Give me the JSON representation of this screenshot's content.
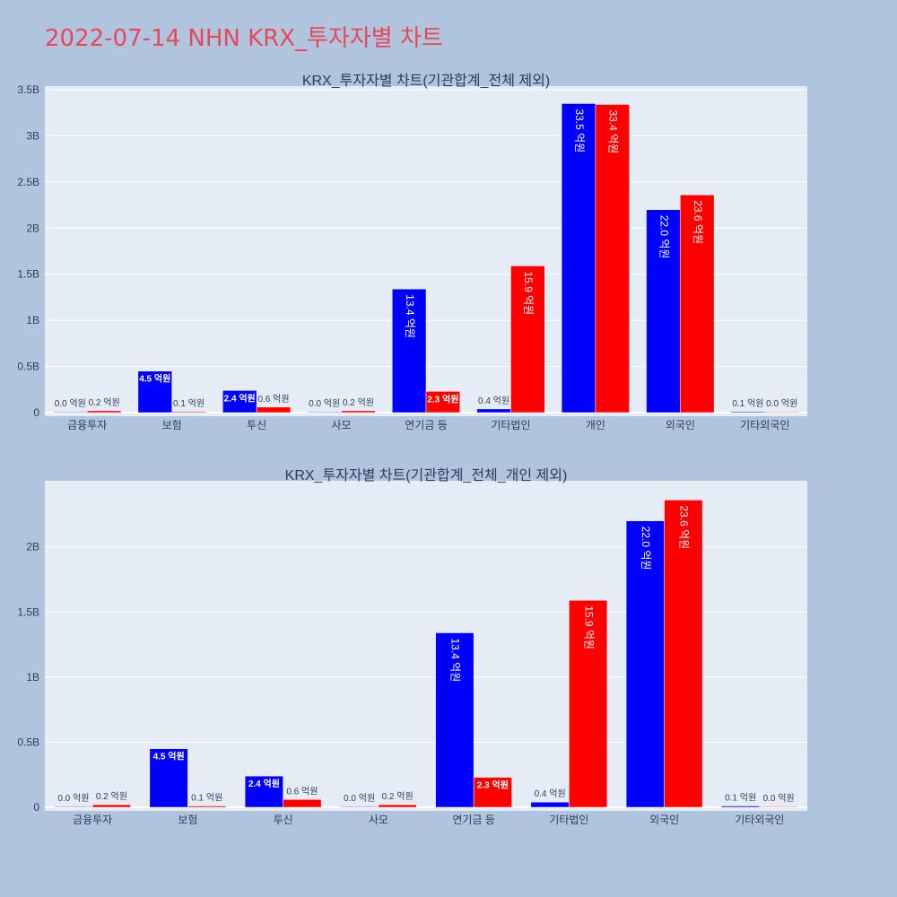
{
  "page": {
    "title": "2022-07-14 NHN KRX_투자자별 차트"
  },
  "colors": {
    "buy": "#0000ff",
    "sell": "#ff0000",
    "plot_bg": "#e5ecf6",
    "page_bg": "#b0c4de",
    "title": "#e8475a"
  },
  "chart_data": [
    {
      "type": "bar",
      "title": "KRX_투자자별 차트(기관합계_전체 제외)",
      "categories": [
        "금융투자",
        "보험",
        "투신",
        "사모",
        "연기금 등",
        "기타법인",
        "개인",
        "외국인",
        "기타외국인"
      ],
      "series": [
        {
          "values": [
            0.0,
            450000000,
            240000000,
            0.0,
            1340000000,
            40000000,
            3350000000,
            2200000000,
            10000000
          ],
          "labels": [
            "0.0 억원",
            "4.5 억원",
            "2.4 억원",
            "0.0 억원",
            "13.4 억원",
            "0.4 억원",
            "33.5 억원",
            "22.0 억원",
            "0.1 억원"
          ]
        },
        {
          "values": [
            20000000,
            10000000,
            60000000,
            20000000,
            230000000,
            1590000000,
            3340000000,
            2360000000,
            0.0
          ],
          "labels": [
            "0.2 억원",
            "0.1 억원",
            "0.6 억원",
            "0.2 억원",
            "2.3 억원",
            "15.9 억원",
            "33.4 억원",
            "23.6 억원",
            "0.0 억원"
          ]
        }
      ],
      "ylim": [
        0,
        3500000000
      ],
      "yticks": [
        0,
        500000000,
        1000000000,
        1500000000,
        2000000000,
        2500000000,
        3000000000,
        3500000000
      ],
      "yticklabels": [
        "0",
        "0.5B",
        "1B",
        "1.5B",
        "2B",
        "2.5B",
        "3B",
        "3.5B"
      ],
      "grid": true
    },
    {
      "type": "bar",
      "title": "KRX_투자자별 차트(기관합계_전체_개인 제외)",
      "categories": [
        "금융투자",
        "보험",
        "투신",
        "사모",
        "연기금 등",
        "기타법인",
        "외국인",
        "기타외국인"
      ],
      "series": [
        {
          "values": [
            0.0,
            450000000,
            240000000,
            0.0,
            1340000000,
            40000000,
            2200000000,
            10000000
          ],
          "labels": [
            "0.0 억원",
            "4.5 억원",
            "2.4 억원",
            "0.0 억원",
            "13.4 억원",
            "0.4 억원",
            "22.0 억원",
            "0.1 억원"
          ]
        },
        {
          "values": [
            20000000,
            10000000,
            60000000,
            20000000,
            230000000,
            1590000000,
            2360000000,
            0.0
          ],
          "labels": [
            "0.2 억원",
            "0.1 억원",
            "0.6 억원",
            "0.2 억원",
            "2.3 억원",
            "15.9 억원",
            "23.6 억원",
            "0.0 억원"
          ]
        }
      ],
      "ylim": [
        0,
        2480000000
      ],
      "yticks": [
        0,
        500000000,
        1000000000,
        1500000000,
        2000000000
      ],
      "yticklabels": [
        "0",
        "0.5B",
        "1B",
        "1.5B",
        "2B"
      ],
      "grid": true
    }
  ]
}
